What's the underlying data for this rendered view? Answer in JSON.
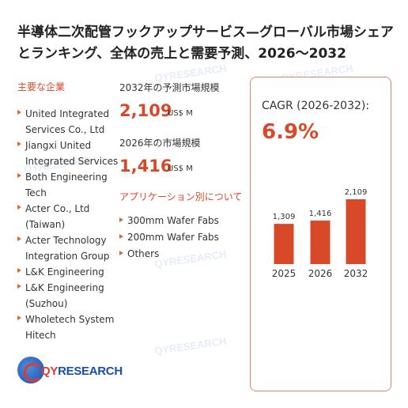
{
  "title": "半導体二次配管フックアップサービス—グローバル市場シェアとランキング、全体の売上と需要予測、2026〜2032",
  "companies_heading": "主要な企業",
  "companies": [
    "United Integrated Services Co., Ltd",
    "Jiangxi United Integrated Services",
    "Both Engineering Tech",
    "Acter Co., Ltd (Taiwan)",
    "Acter Technology Integration Group",
    "L&K Engineering",
    "L&K Engineering (Suzhou)",
    "Wholetech System Hitech"
  ],
  "stats": {
    "y2032_label": "2032年の予測市場規模",
    "y2032_value": "2,109",
    "y2032_unit": "US$ M",
    "y2026_label": "2026年の市場規模",
    "y2026_value": "1,416",
    "y2026_unit": "US$ M"
  },
  "applications_heading": "アプリケーション別について",
  "applications": [
    "300mm Wafer Fabs",
    "200mm Wafer Fabs",
    "Others"
  ],
  "cagr": {
    "label": "CAGR (2026-2032):",
    "value": "6.9%"
  },
  "logo": {
    "q": "QY",
    "rest": "RESEARCH"
  },
  "watermark_text": "QYRESEARCH",
  "colors": {
    "accent": "#d8492a",
    "bar": "#d8492a",
    "panel_border": "#e0846a"
  },
  "chart_data": {
    "type": "bar",
    "title": "",
    "xlabel": "",
    "ylabel": "",
    "categories": [
      "2025",
      "2026",
      "2032"
    ],
    "values": [
      1309,
      1416,
      2109
    ],
    "value_labels": [
      "1,309",
      "1,416",
      "2,109"
    ],
    "ylim": [
      0,
      2109
    ],
    "grid": false,
    "legend": "none"
  }
}
